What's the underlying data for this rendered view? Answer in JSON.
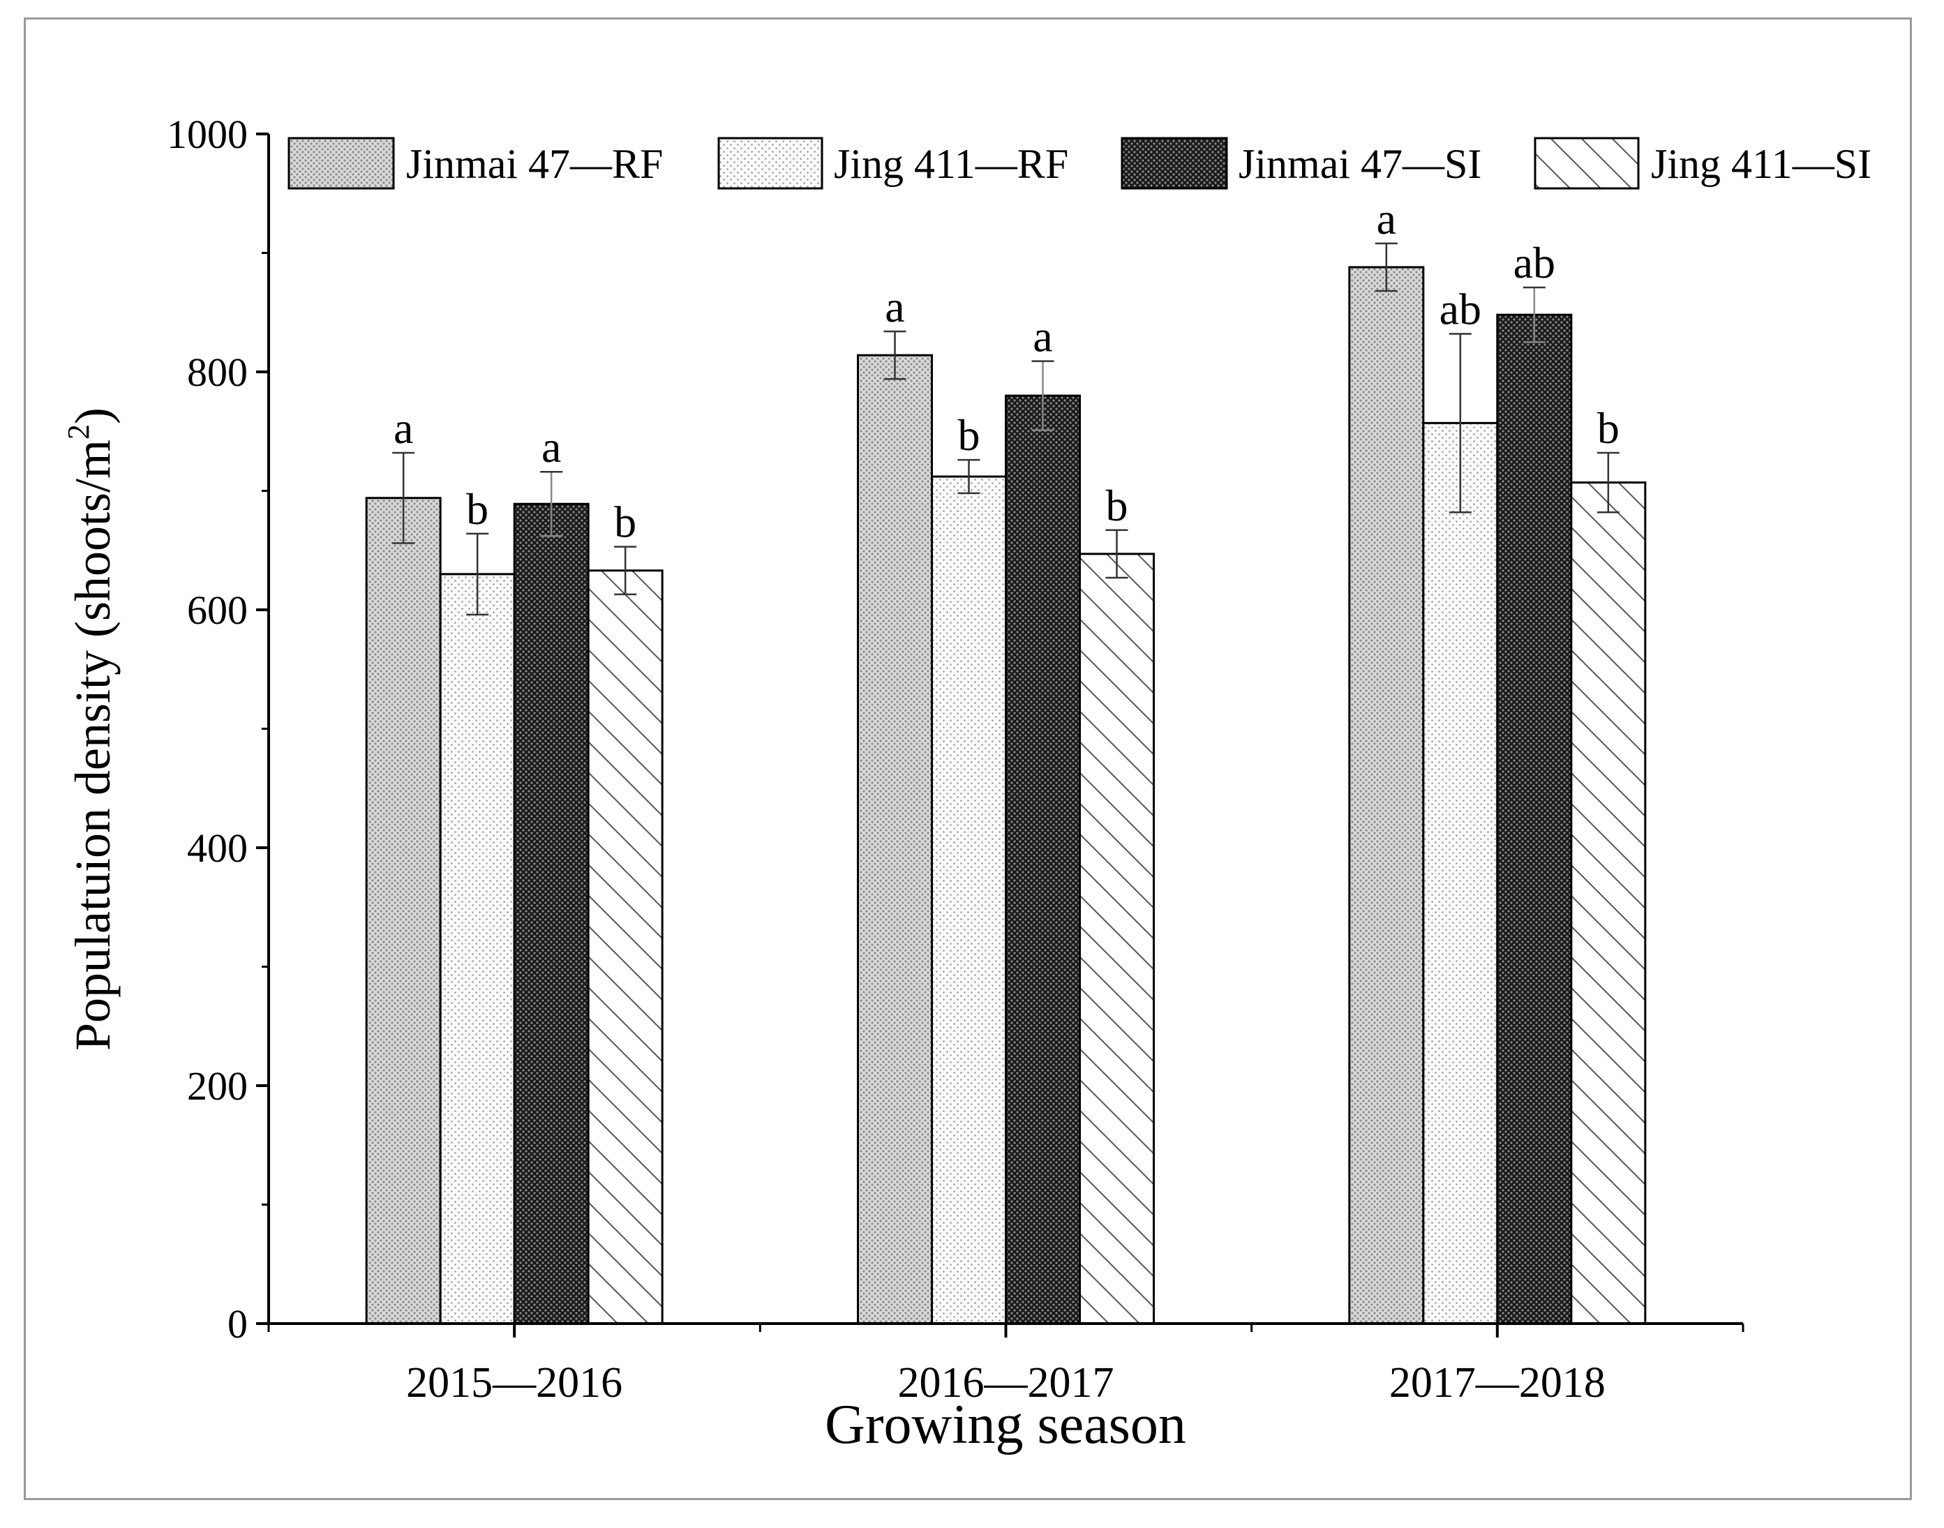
{
  "chart_data": {
    "type": "bar",
    "title": "",
    "xlabel": "Growing season",
    "ylabel_main": "Populatuion density (shoots/m",
    "ylabel_sup": "2",
    "ylabel_end": ")",
    "ylim": [
      0,
      1000
    ],
    "yticks": [
      0,
      200,
      400,
      600,
      800,
      1000
    ],
    "ytick_labels": [
      "0",
      "200",
      "400",
      "600",
      "800",
      "1000"
    ],
    "categories": [
      "2015—2016",
      "2016—2017",
      "2017—2018"
    ],
    "legend_position": "top",
    "series": [
      {
        "name": "Jinmai 47—RF",
        "pattern": "dots-light",
        "values": [
          694,
          814,
          888
        ],
        "errors": [
          38,
          20,
          20
        ],
        "letters": [
          "a",
          "a",
          "a"
        ]
      },
      {
        "name": "Jing 411—RF",
        "pattern": "dots-sparse",
        "values": [
          630,
          712,
          757
        ],
        "errors": [
          34,
          14,
          75
        ],
        "letters": [
          "b",
          "b",
          "ab"
        ]
      },
      {
        "name": "Jinmai 47—SI",
        "pattern": "dots-dark",
        "values": [
          689,
          780,
          848
        ],
        "errors": [
          27,
          29,
          23
        ],
        "letters": [
          "a",
          "a",
          "ab"
        ]
      },
      {
        "name": "Jing 411—SI",
        "pattern": "hatch",
        "values": [
          633,
          647,
          707
        ],
        "errors": [
          20,
          20,
          25
        ],
        "letters": [
          "b",
          "b",
          "b"
        ]
      }
    ]
  }
}
